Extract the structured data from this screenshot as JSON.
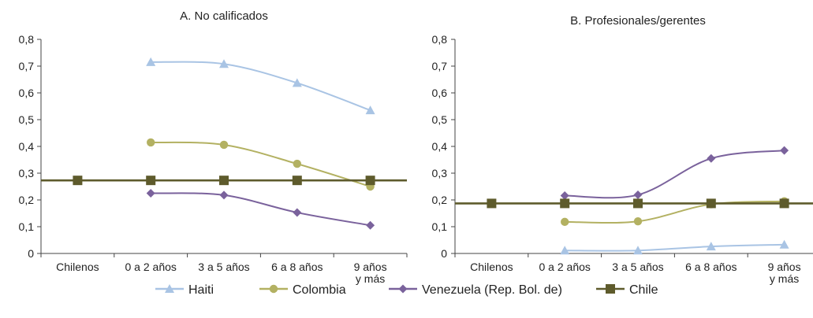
{
  "chart_data": [
    {
      "type": "line",
      "title": "A. No calificados",
      "categories": [
        "Chilenos",
        "0 a 2 años",
        "3 a 5 años",
        "6 a 8 años",
        "9 años\ny más"
      ],
      "ylim": [
        0,
        0.8
      ],
      "yticks": [
        "0",
        "0,1",
        "0,2",
        "0,3",
        "0,4",
        "0,5",
        "0,6",
        "0,7",
        "0,8"
      ],
      "grid": false,
      "series": [
        {
          "name": "Haiti",
          "values": [
            null,
            0.715,
            0.708,
            0.637,
            0.535
          ]
        },
        {
          "name": "Colombia",
          "values": [
            null,
            0.415,
            0.406,
            0.335,
            0.25
          ]
        },
        {
          "name": "Venezuela (Rep. Bol. de)",
          "values": [
            null,
            0.225,
            0.218,
            0.153,
            0.105
          ]
        },
        {
          "name": "Chile",
          "values": [
            0.273,
            0.273,
            0.273,
            0.273,
            0.273
          ]
        }
      ]
    },
    {
      "type": "line",
      "title": "B. Profesionales/gerentes",
      "categories": [
        "Chilenos",
        "0 a 2 años",
        "3 a 5 años",
        "6 a 8 años",
        "9 años\ny más"
      ],
      "ylim": [
        0,
        0.8
      ],
      "yticks": [
        "0",
        "0,1",
        "0,2",
        "0,3",
        "0,4",
        "0,5",
        "0,6",
        "0,7",
        "0,8"
      ],
      "grid": false,
      "series": [
        {
          "name": "Haiti",
          "values": [
            null,
            0.011,
            0.011,
            0.026,
            0.033
          ]
        },
        {
          "name": "Colombia",
          "values": [
            null,
            0.118,
            0.12,
            0.184,
            0.195
          ]
        },
        {
          "name": "Venezuela (Rep. Bol. de)",
          "values": [
            null,
            0.216,
            0.219,
            0.355,
            0.385
          ]
        },
        {
          "name": "Chile",
          "values": [
            0.187,
            0.187,
            0.187,
            0.187,
            0.187
          ]
        }
      ]
    }
  ],
  "legend": {
    "position": "bottom",
    "items": [
      {
        "name": "Haiti",
        "color": "#a9c4e4",
        "marker": "triangle"
      },
      {
        "name": "Colombia",
        "color": "#b3b162",
        "marker": "circle"
      },
      {
        "name": "Venezuela (Rep. Bol. de)",
        "color": "#7a629c",
        "marker": "diamond"
      },
      {
        "name": "Chile",
        "color": "#5e5b2c",
        "marker": "square"
      }
    ]
  }
}
